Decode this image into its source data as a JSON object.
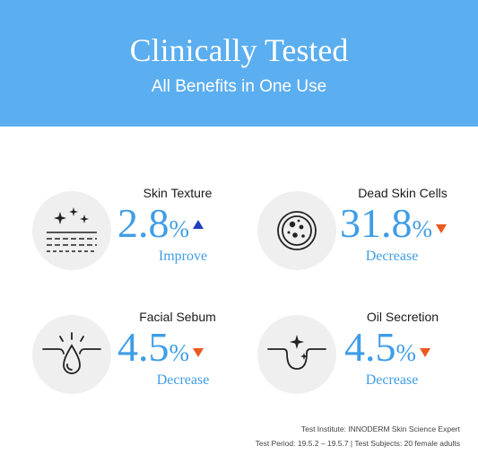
{
  "header": {
    "title": "Clinically Tested",
    "subtitle": "All Benefits in One Use"
  },
  "stats": [
    {
      "label": "Skin Texture",
      "value": "2.8",
      "unit": "%",
      "direction": "up",
      "direction_color": "#1f3fbf",
      "change": "Improve",
      "icon": "sparkle-texture-icon"
    },
    {
      "label": "Dead Skin Cells",
      "value": "31.8",
      "unit": "%",
      "direction": "down",
      "direction_color": "#ea5a1e",
      "change": "Decrease",
      "icon": "petri-dish-icon"
    },
    {
      "label": "Facial Sebum",
      "value": "4.5",
      "unit": "%",
      "direction": "down",
      "direction_color": "#ea5a1e",
      "change": "Decrease",
      "icon": "sebum-drop-icon"
    },
    {
      "label": "Oil Secretion",
      "value": "4.5",
      "unit": "%",
      "direction": "down",
      "direction_color": "#ea5a1e",
      "change": "Decrease",
      "icon": "pore-sparkle-icon"
    }
  ],
  "footer": {
    "line1": "Test Institute: INNODERM Skin Science Expert",
    "line2": "Test Period: 19.5.2 – 19.5.7 | Test Subjects: 20 female adults"
  },
  "colors": {
    "banner": "#5baeef",
    "accent": "#3f9de6"
  }
}
